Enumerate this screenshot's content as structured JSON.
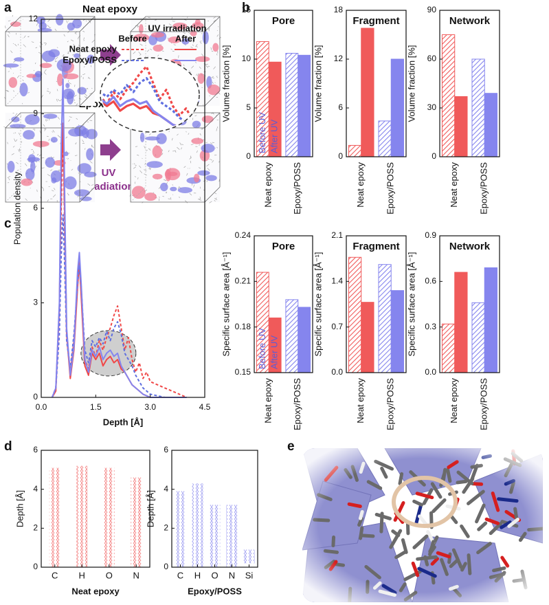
{
  "panel_labels": [
    "a",
    "b",
    "c",
    "d",
    "e"
  ],
  "panel_a": {
    "labels": [
      "Neat epoxy",
      "Epoxy/POSS"
    ],
    "annotation": [
      "UV",
      "irradiation"
    ]
  },
  "chart_data": [
    {
      "type": "bar",
      "title": "Pore",
      "ylabel": "Volume fraction [%]",
      "categories": [
        "Neat epoxy",
        "Epoxy/POSS"
      ],
      "colors": [
        "#f05a5a",
        "#8585ee"
      ],
      "series": [
        {
          "name": "Before UV",
          "pattern": "hatched",
          "values": [
            11.8,
            10.6
          ]
        },
        {
          "name": "After UV",
          "pattern": "solid",
          "values": [
            9.7,
            10.4
          ]
        }
      ],
      "ylim": [
        0,
        15
      ],
      "yticks": [
        0,
        5,
        10,
        15
      ]
    },
    {
      "type": "bar",
      "title": "Fragment",
      "ylabel": "Volume fraction [%]",
      "categories": [
        "Neat epoxy",
        "Epoxy/POSS"
      ],
      "colors": [
        "#f05a5a",
        "#8585ee"
      ],
      "series": [
        {
          "pattern": "hatched",
          "values": [
            1.4,
            4.4
          ]
        },
        {
          "pattern": "solid",
          "values": [
            15.8,
            12.0
          ]
        }
      ],
      "ylim": [
        0,
        18
      ],
      "yticks": [
        0,
        6,
        12,
        18
      ]
    },
    {
      "type": "bar",
      "title": "Network",
      "ylabel": "Volume fraction [%]",
      "categories": [
        "Neat epoxy",
        "Epoxy/POSS"
      ],
      "colors": [
        "#f05a5a",
        "#8585ee"
      ],
      "series": [
        {
          "pattern": "hatched",
          "values": [
            75,
            60
          ]
        },
        {
          "pattern": "solid",
          "values": [
            37,
            39
          ]
        }
      ],
      "ylim": [
        0,
        90
      ],
      "yticks": [
        0,
        30,
        60,
        90
      ]
    },
    {
      "type": "bar",
      "title": "Pore",
      "ylabel": "Specific surface area [Å⁻¹]",
      "categories": [
        "Neat epoxy",
        "Epoxy/POSS"
      ],
      "colors": [
        "#f05a5a",
        "#8585ee"
      ],
      "series": [
        {
          "name": "Before UV",
          "pattern": "hatched",
          "values": [
            0.216,
            0.198
          ]
        },
        {
          "name": "After UV",
          "pattern": "solid",
          "values": [
            0.186,
            0.193
          ]
        }
      ],
      "ylim": [
        0.15,
        0.24
      ],
      "yticks": [
        0.15,
        0.18,
        0.21,
        0.24
      ]
    },
    {
      "type": "bar",
      "title": "Fragment",
      "ylabel": "Specific surface area [Å⁻¹]",
      "categories": [
        "Neat epoxy",
        "Epoxy/POSS"
      ],
      "colors": [
        "#f05a5a",
        "#8585ee"
      ],
      "series": [
        {
          "pattern": "hatched",
          "values": [
            1.77,
            1.66
          ]
        },
        {
          "pattern": "solid",
          "values": [
            1.08,
            1.26
          ]
        }
      ],
      "ylim": [
        0,
        2.1
      ],
      "yticks": [
        {
          "value": 0,
          "label": "0.0"
        },
        0.7,
        1.4,
        2.1
      ]
    },
    {
      "type": "bar",
      "title": "Network",
      "ylabel": "Specific surface area [Å⁻¹]",
      "categories": [
        "Neat epoxy",
        "Epoxy/POSS"
      ],
      "colors": [
        "#f05a5a",
        "#8585ee"
      ],
      "series": [
        {
          "pattern": "hatched",
          "values": [
            0.32,
            0.46
          ]
        },
        {
          "pattern": "solid",
          "values": [
            0.66,
            0.69
          ]
        }
      ],
      "ylim": [
        0,
        0.9
      ],
      "yticks": [
        {
          "value": 0,
          "label": "0.0"
        },
        0.3,
        0.6,
        0.9
      ]
    },
    {
      "type": "line",
      "xlabel": "Depth [Å]",
      "ylabel": "Population density",
      "legend_title": "UV irradiation",
      "legend_columns": [
        "Before",
        "After"
      ],
      "x": [
        0.3,
        0.4,
        0.5,
        0.55,
        0.6,
        0.65,
        0.7,
        0.8,
        0.9,
        1.0,
        1.05,
        1.1,
        1.2,
        1.3,
        1.4,
        1.5,
        1.6,
        1.7,
        1.8,
        1.9,
        2.0,
        2.1,
        2.2,
        2.3,
        2.4,
        2.5,
        2.6,
        2.7,
        2.8,
        2.9,
        3.0,
        3.2,
        3.4,
        3.6,
        3.8,
        4.0
      ],
      "series": [
        {
          "name": "Neat epoxy",
          "color": "#f04848",
          "dashed": true,
          "values": [
            0,
            0.3,
            2.5,
            6,
            8.5,
            5,
            2,
            0.8,
            1.8,
            3.6,
            4.2,
            3.4,
            1.2,
            0.9,
            1.6,
            1.3,
            1.8,
            1.5,
            1.9,
            2.2,
            2.6,
            2.9,
            2.2,
            1.5,
            1.9,
            1.2,
            0.8,
            1.1,
            0.6,
            0.8,
            0.5,
            0.4,
            0.3,
            0.2,
            0.1,
            0
          ]
        },
        {
          "color": "#f04848",
          "dashed": false,
          "values": [
            0,
            0.2,
            2.8,
            7,
            8.7,
            5.5,
            2,
            0.6,
            1.5,
            3.5,
            4.3,
            3.2,
            1.0,
            0.7,
            1.4,
            1.2,
            1.4,
            1.0,
            1.2,
            1.3,
            1.1,
            1.2,
            0.9,
            0.8,
            0.6,
            0.4,
            0.3,
            0.2,
            0.1,
            0.05,
            0,
            0,
            0,
            0,
            0,
            0
          ]
        },
        {
          "name": "Epoxy/POSS",
          "color": "#5f6fe0",
          "dashed": true,
          "values": [
            0,
            0.3,
            2,
            4.5,
            5.8,
            4,
            1.8,
            0.9,
            2,
            3.6,
            4.2,
            3.5,
            1.5,
            1.1,
            1.8,
            1.6,
            1.9,
            1.7,
            2.1,
            1.8,
            2.2,
            2.4,
            2.0,
            1.4,
            1.2,
            1.0,
            0.7,
            0.5,
            0.3,
            0.2,
            0.1,
            0.05,
            0,
            0,
            0,
            0
          ]
        },
        {
          "color": "#8585ee",
          "dashed": false,
          "values": [
            0,
            0.3,
            3,
            8,
            10.1,
            6,
            2.2,
            0.7,
            1.6,
            4,
            4.6,
            3.6,
            1.2,
            0.8,
            1.5,
            1.3,
            1.6,
            1.2,
            1.4,
            1.5,
            1.3,
            1.4,
            1.0,
            0.8,
            0.6,
            0.4,
            0.3,
            0.2,
            0.1,
            0.05,
            0,
            0,
            0,
            0,
            0,
            0
          ]
        }
      ],
      "xlim": [
        0,
        4.5
      ],
      "xticks": [
        {
          "value": 0,
          "label": "0.0"
        },
        1.5,
        {
          "value": 3,
          "label": "3.0"
        },
        4.5
      ],
      "ylim": [
        0,
        12
      ],
      "yticks": [
        0,
        3,
        6,
        9,
        12
      ]
    },
    {
      "type": "strip",
      "xlabel": "Neat epoxy",
      "ylabel": "Depth [Å]",
      "categories": [
        "C",
        "H",
        "O",
        "N"
      ],
      "color": "#f05a5a",
      "ranges": [
        [
          0,
          5.1
        ],
        [
          0,
          5.2
        ],
        [
          0,
          5.1
        ],
        [
          0,
          4.6
        ]
      ],
      "ylim": [
        0,
        6
      ],
      "yticks": [
        0,
        2,
        4,
        6
      ]
    },
    {
      "type": "strip",
      "xlabel": "Epoxy/POSS",
      "ylabel": "Depth [Å]",
      "categories": [
        "C",
        "H",
        "O",
        "N",
        "Si"
      ],
      "color": "#8585ee",
      "ranges": [
        [
          0,
          3.9
        ],
        [
          0,
          4.3
        ],
        [
          0,
          3.2
        ],
        [
          0,
          3.2
        ],
        [
          0.2,
          0.9
        ]
      ],
      "ylim": [
        0,
        6
      ],
      "yticks": [
        0,
        2,
        4,
        6
      ]
    }
  ]
}
